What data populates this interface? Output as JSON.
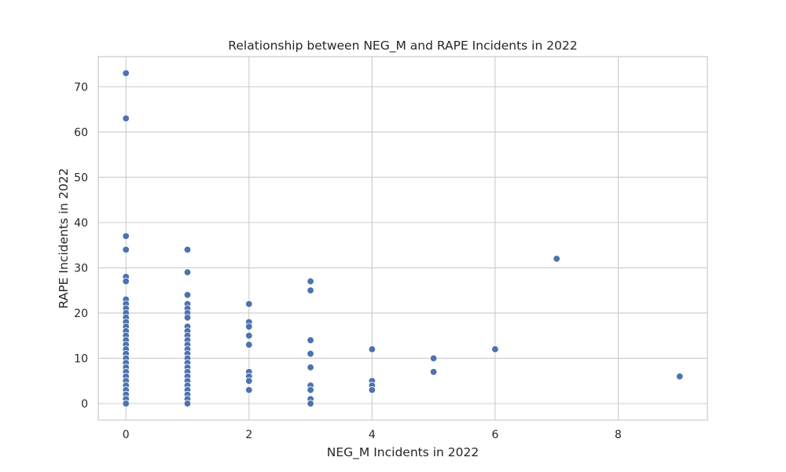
{
  "chart_data": {
    "type": "scatter",
    "title": "Relationship between NEG_M and RAPE Incidents in 2022",
    "xlabel": "NEG_M Incidents in 2022",
    "ylabel": "RAPE Incidents in 2022",
    "xlim": [
      -0.45,
      9.45
    ],
    "ylim": [
      -3.65,
      76.65
    ],
    "xticks": [
      0,
      2,
      4,
      6,
      8
    ],
    "yticks": [
      0,
      10,
      20,
      30,
      40,
      50,
      60,
      70
    ],
    "grid": true,
    "colors": {
      "marker": "#4c72b0",
      "grid": "#cccccc",
      "frame": "#cccccc",
      "text": "#262626"
    },
    "points": [
      [
        0,
        73
      ],
      [
        0,
        63
      ],
      [
        0,
        37
      ],
      [
        0,
        34
      ],
      [
        0,
        28
      ],
      [
        0,
        27
      ],
      [
        0,
        23
      ],
      [
        0,
        22
      ],
      [
        0,
        21
      ],
      [
        0,
        20
      ],
      [
        0,
        19
      ],
      [
        0,
        18
      ],
      [
        0,
        17
      ],
      [
        0,
        16
      ],
      [
        0,
        15
      ],
      [
        0,
        14
      ],
      [
        0,
        13
      ],
      [
        0,
        12
      ],
      [
        0,
        11
      ],
      [
        0,
        10
      ],
      [
        0,
        9
      ],
      [
        0,
        8
      ],
      [
        0,
        7
      ],
      [
        0,
        6
      ],
      [
        0,
        5
      ],
      [
        0,
        4
      ],
      [
        0,
        3
      ],
      [
        0,
        2
      ],
      [
        0,
        1
      ],
      [
        0,
        0
      ],
      [
        1,
        34
      ],
      [
        1,
        29
      ],
      [
        1,
        24
      ],
      [
        1,
        22
      ],
      [
        1,
        21
      ],
      [
        1,
        20
      ],
      [
        1,
        19
      ],
      [
        1,
        17
      ],
      [
        1,
        16
      ],
      [
        1,
        15
      ],
      [
        1,
        14
      ],
      [
        1,
        13
      ],
      [
        1,
        12
      ],
      [
        1,
        11
      ],
      [
        1,
        10
      ],
      [
        1,
        9
      ],
      [
        1,
        8
      ],
      [
        1,
        7
      ],
      [
        1,
        6
      ],
      [
        1,
        5
      ],
      [
        1,
        4
      ],
      [
        1,
        3
      ],
      [
        1,
        2
      ],
      [
        1,
        1
      ],
      [
        1,
        0
      ],
      [
        2,
        22
      ],
      [
        2,
        18
      ],
      [
        2,
        17
      ],
      [
        2,
        15
      ],
      [
        2,
        13
      ],
      [
        2,
        7
      ],
      [
        2,
        6
      ],
      [
        2,
        5
      ],
      [
        2,
        3
      ],
      [
        3,
        27
      ],
      [
        3,
        25
      ],
      [
        3,
        14
      ],
      [
        3,
        11
      ],
      [
        3,
        8
      ],
      [
        3,
        4
      ],
      [
        3,
        3
      ],
      [
        3,
        1
      ],
      [
        3,
        0
      ],
      [
        4,
        12
      ],
      [
        4,
        5
      ],
      [
        4,
        4
      ],
      [
        4,
        3
      ],
      [
        5,
        10
      ],
      [
        5,
        7
      ],
      [
        6,
        12
      ],
      [
        7,
        32
      ],
      [
        9,
        6
      ]
    ]
  }
}
